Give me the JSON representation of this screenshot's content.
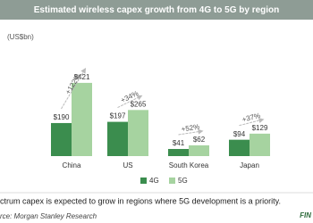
{
  "chart_data": {
    "type": "bar",
    "title": "Estimated wireless capex growth from 4G to 5G by region",
    "unit_label": "(US$bn)",
    "categories": [
      "China",
      "US",
      "South Korea",
      "Japan"
    ],
    "series": [
      {
        "name": "4G",
        "color": "#3b8d4e",
        "values": [
          190,
          197,
          41,
          94
        ],
        "value_labels": [
          "$190",
          "$197",
          "$41",
          "$94"
        ]
      },
      {
        "name": "5G",
        "color": "#a6d3a0",
        "values": [
          421,
          265,
          62,
          129
        ],
        "value_labels": [
          "$421",
          "$265",
          "$62",
          "$129"
        ]
      }
    ],
    "annotations": [
      "+122%",
      "+34%",
      "+52%",
      "+37%"
    ],
    "caption": "ctrum capex is expected to grow in regions where 5G development is a priority.",
    "source": "rce: Morgan Stanley Research",
    "logo": "FIN"
  }
}
